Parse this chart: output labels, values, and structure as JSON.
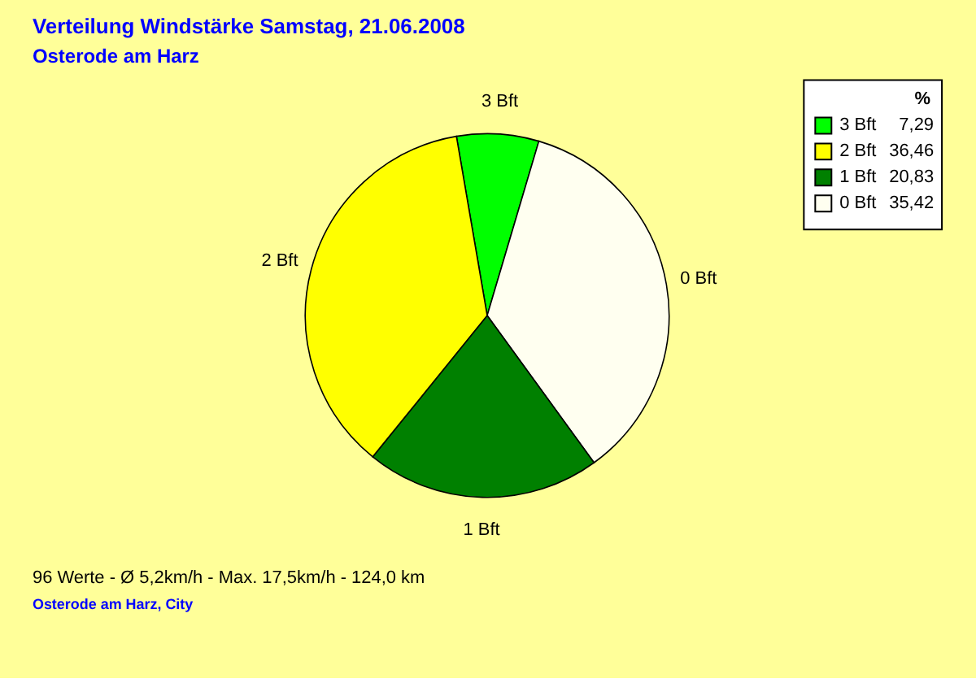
{
  "chart_data": {
    "type": "pie",
    "title": "Verteilung Windstärke  Samstag, 21.06.2008",
    "subtitle": "Osterode am Harz",
    "categories": [
      "3 Bft",
      "2 Bft",
      "1 Bft",
      "0 Bft"
    ],
    "values": [
      7.29,
      36.46,
      20.83,
      35.42
    ],
    "value_labels": [
      "7,29",
      "36,46",
      "20,83",
      "35,42"
    ],
    "colors": [
      "#00ff00",
      "#ffff00",
      "#008000",
      "#fffff0"
    ],
    "legend_title": "%",
    "legend": "top right",
    "annotations": [
      "96 Werte   -   Ø 5,2km/h  -  Max. 17,5km/h   -   124,0 km",
      "Osterode am Harz, City"
    ]
  }
}
